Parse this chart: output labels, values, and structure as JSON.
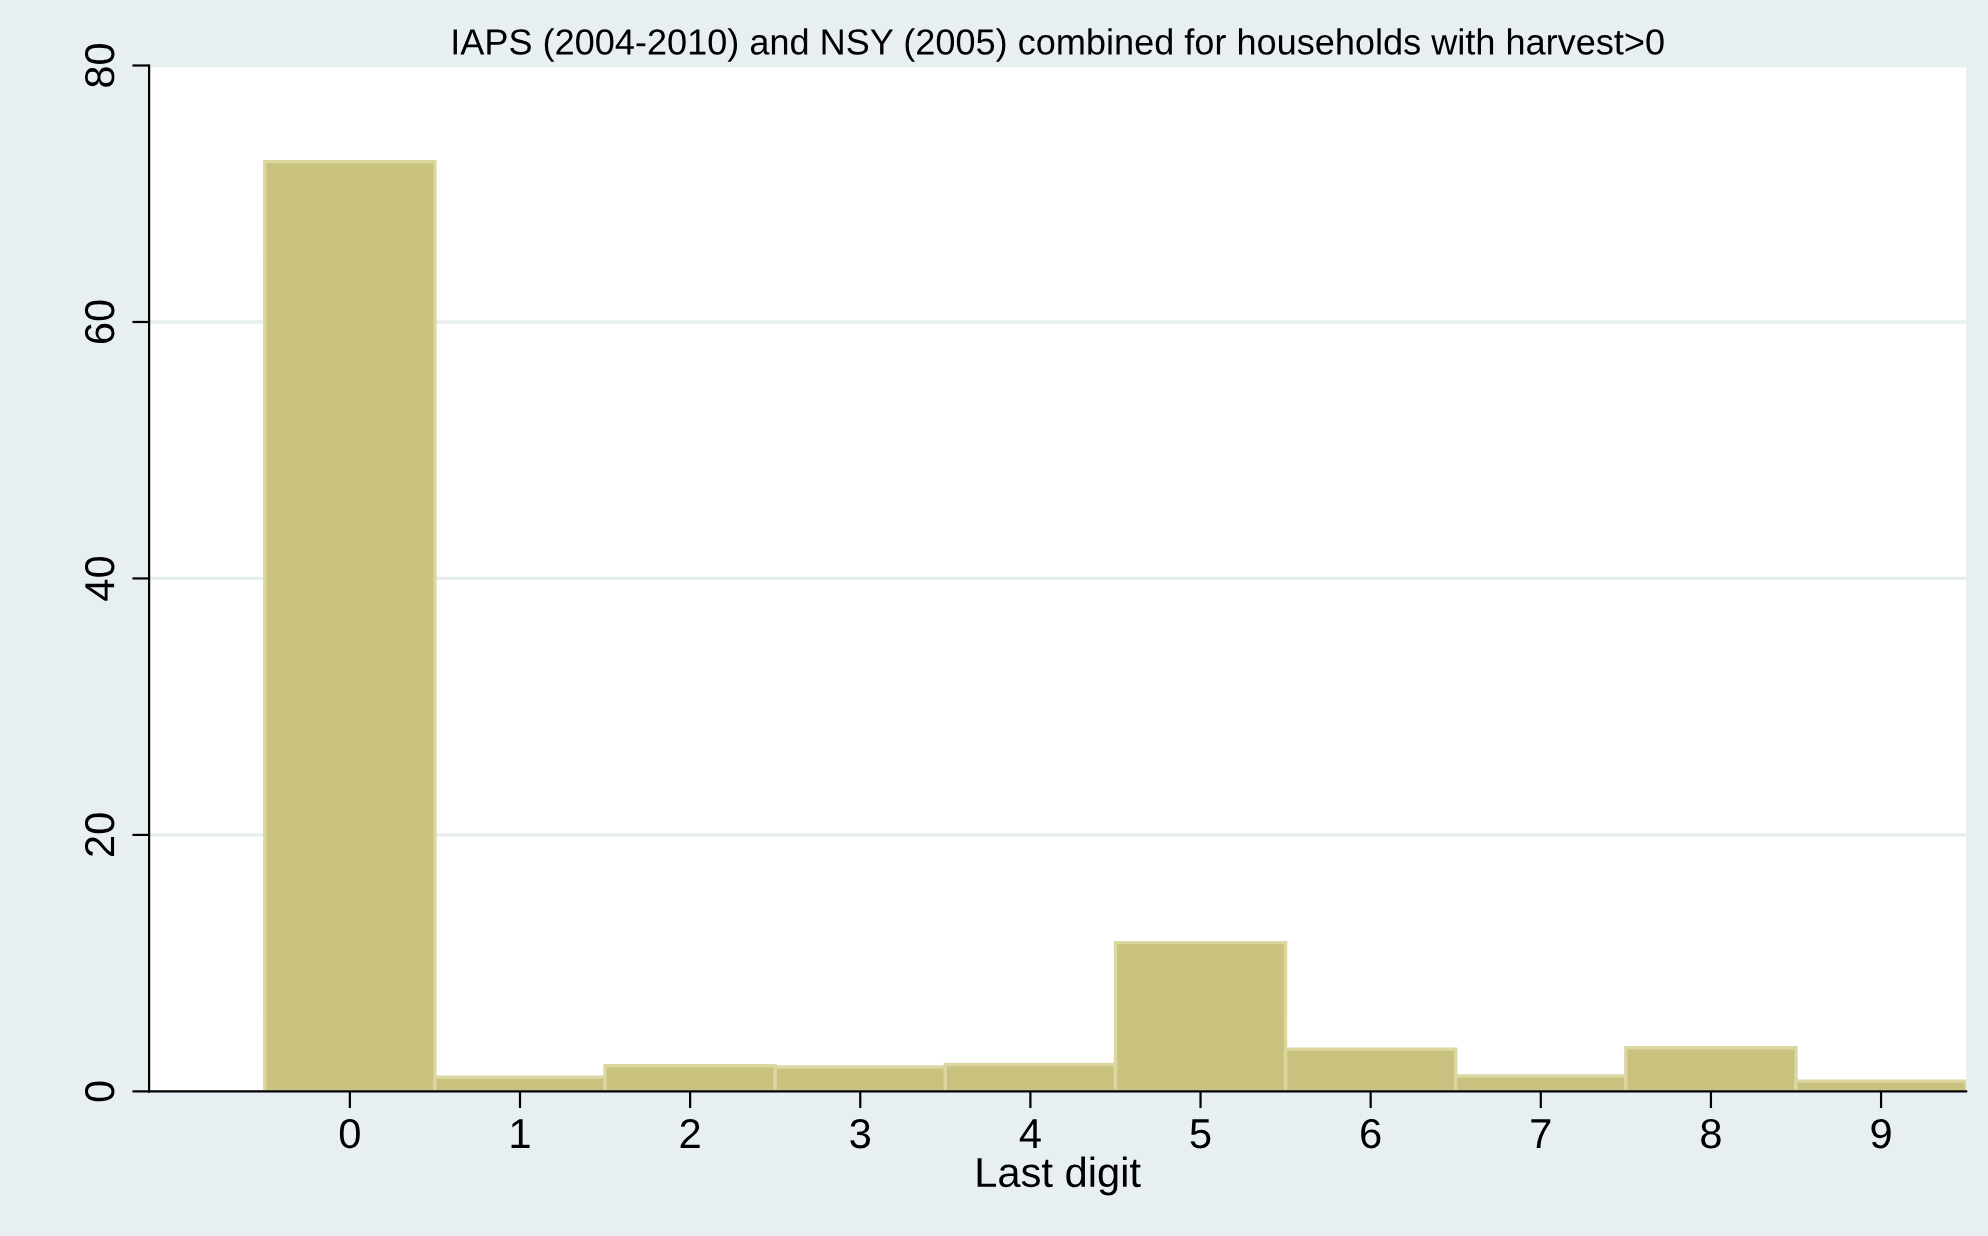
{
  "chart_data": {
    "type": "histogram",
    "title": "IAPS (2004-2010) and NSY (2005) combined for households with harvest>0",
    "xlabel": "Last digit",
    "bins": [
      -0.5,
      0.5,
      1.5,
      2.5,
      3.5,
      4.5,
      5.5,
      6.5,
      7.5,
      8.5,
      9.5
    ],
    "values": [
      72.5,
      1.1,
      2.0,
      1.9,
      2.1,
      11.6,
      3.3,
      1.2,
      3.4,
      0.8
    ],
    "color": "#c9c27f",
    "xlim": [
      -1.18,
      9.5
    ],
    "xticks": [
      0,
      1,
      2,
      3,
      4,
      5,
      6,
      7,
      8,
      9
    ],
    "ylim": [
      0,
      80
    ],
    "yticks": [
      0,
      20,
      40,
      60,
      80
    ],
    "grid": "y"
  }
}
